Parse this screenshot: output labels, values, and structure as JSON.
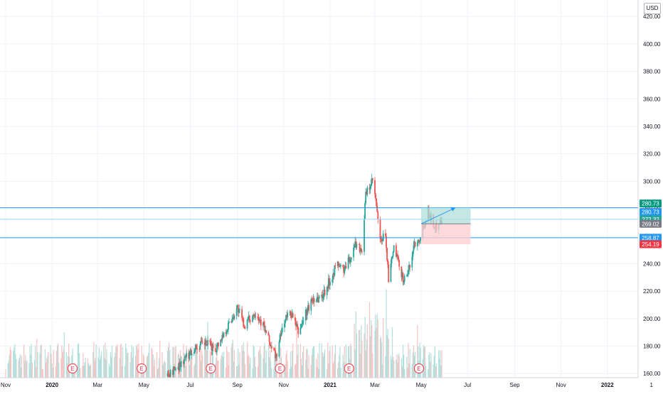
{
  "currency": "USD",
  "chart_data": {
    "type": "candlestick",
    "y_axis": {
      "ylim": [
        157,
        432
      ],
      "ticks": [
        160,
        180,
        200,
        220,
        240,
        260,
        280,
        300,
        320,
        340,
        360,
        380,
        400,
        420
      ],
      "tick_labels": [
        "160.00",
        "180.00",
        "200.00",
        "220.00",
        "240.00",
        "260.00",
        "280.00",
        "300.00",
        "320.00",
        "340.00",
        "360.00",
        "380.00",
        "400.00",
        "420.00"
      ]
    },
    "x_axis": {
      "labels": [
        {
          "text": "Nov",
          "date": "2019-11-01",
          "bold": false
        },
        {
          "text": "2020",
          "date": "2020-01-01",
          "bold": true
        },
        {
          "text": "Mar",
          "date": "2020-03-01",
          "bold": false
        },
        {
          "text": "May",
          "date": "2020-05-01",
          "bold": false
        },
        {
          "text": "Jul",
          "date": "2020-07-01",
          "bold": false
        },
        {
          "text": "Sep",
          "date": "2020-09-01",
          "bold": false
        },
        {
          "text": "Nov",
          "date": "2020-11-01",
          "bold": false
        },
        {
          "text": "2021",
          "date": "2021-01-01",
          "bold": true
        },
        {
          "text": "Mar",
          "date": "2021-03-01",
          "bold": false
        },
        {
          "text": "May",
          "date": "2021-05-01",
          "bold": false
        },
        {
          "text": "Jul",
          "date": "2021-07-01",
          "bold": false
        },
        {
          "text": "Sep",
          "date": "2021-09-01",
          "bold": false
        },
        {
          "text": "Nov",
          "date": "2021-11-01",
          "bold": false
        },
        {
          "text": "2022",
          "date": "2022-01-01",
          "bold": true
        },
        {
          "text": "1",
          "date": "2022-02-28",
          "bold": false
        }
      ]
    },
    "price_path": [
      [
        "2020-06-01",
        158
      ],
      [
        "2020-06-20",
        168
      ],
      [
        "2020-07-05",
        178
      ],
      [
        "2020-07-20",
        182
      ],
      [
        "2020-08-03",
        178
      ],
      [
        "2020-08-20",
        195
      ],
      [
        "2020-09-01",
        208
      ],
      [
        "2020-09-10",
        195
      ],
      [
        "2020-09-25",
        205
      ],
      [
        "2020-10-05",
        195
      ],
      [
        "2020-10-15",
        180
      ],
      [
        "2020-10-22",
        172
      ],
      [
        "2020-11-01",
        198
      ],
      [
        "2020-11-10",
        205
      ],
      [
        "2020-11-20",
        190
      ],
      [
        "2020-12-01",
        205
      ],
      [
        "2020-12-10",
        215
      ],
      [
        "2020-12-20",
        215
      ],
      [
        "2021-01-01",
        228
      ],
      [
        "2021-01-10",
        240
      ],
      [
        "2021-01-20",
        235
      ],
      [
        "2021-01-28",
        245
      ],
      [
        "2021-02-04",
        255
      ],
      [
        "2021-02-12",
        250
      ],
      [
        "2021-02-17",
        290
      ],
      [
        "2021-02-22",
        296
      ],
      [
        "2021-02-26",
        300
      ],
      [
        "2021-03-01",
        290
      ],
      [
        "2021-03-05",
        272
      ],
      [
        "2021-03-08",
        255
      ],
      [
        "2021-03-15",
        262
      ],
      [
        "2021-03-19",
        228
      ],
      [
        "2021-03-26",
        252
      ],
      [
        "2021-04-01",
        240
      ],
      [
        "2021-04-08",
        228
      ],
      [
        "2021-04-15",
        236
      ],
      [
        "2021-04-22",
        255
      ],
      [
        "2021-04-28",
        258
      ],
      [
        "2021-05-04",
        268
      ],
      [
        "2021-05-10",
        278
      ],
      [
        "2021-05-15",
        272
      ],
      [
        "2021-05-19",
        265
      ],
      [
        "2021-05-25",
        272
      ],
      [
        "2021-05-30",
        270
      ]
    ],
    "earnings_markers": [
      {
        "label": "E",
        "date": "2020-01-28"
      },
      {
        "label": "E",
        "date": "2020-04-28"
      },
      {
        "label": "E",
        "date": "2020-07-28"
      },
      {
        "label": "E",
        "date": "2020-10-27"
      },
      {
        "label": "E",
        "date": "2021-01-26"
      },
      {
        "label": "E",
        "date": "2021-04-28"
      }
    ],
    "horizontal_lines": [
      {
        "price": 280.73,
        "color": "#2196f3"
      },
      {
        "price": 272.32,
        "color": "#9ed3f5"
      },
      {
        "price": 258.87,
        "color": "#2196f3"
      }
    ],
    "position_tool": {
      "type": "long",
      "start_date": "2021-05-01",
      "end_date": "2021-07-05",
      "entry": 269.02,
      "target": 280.73,
      "stop": 254.19,
      "current": 272.32,
      "arrow_to_date": "2021-06-15",
      "profit_color": "#b2dfdb",
      "loss_color": "#ffcdd2"
    },
    "price_labels": [
      {
        "text": "280.73",
        "price": 280.73,
        "bg": "#089981",
        "fg": "#ffffff",
        "offset": -6
      },
      {
        "text": "280.73",
        "price": 280.73,
        "bg": "#2196f3",
        "fg": "#ffffff",
        "offset": 6
      },
      {
        "text": "272.32",
        "price": 272.32,
        "bg": "#26a69a",
        "fg": "#ffffff",
        "offset": 0
      },
      {
        "text": "269.02",
        "price": 269.02,
        "bg": "#787b86",
        "fg": "#ffffff",
        "offset": 0
      },
      {
        "text": "258.87",
        "price": 258.87,
        "bg": "#2196f3",
        "fg": "#ffffff",
        "offset": 0
      },
      {
        "text": "254.19",
        "price": 254.19,
        "bg": "#f23645",
        "fg": "#ffffff",
        "offset": 0
      }
    ],
    "colors": {
      "up": "#26a69a",
      "down": "#ef5350",
      "volume_up": "#b2dfdb",
      "volume_down": "#f7c3c3",
      "grid": "#f0f3fa",
      "axis_text": "#131722"
    },
    "grid": true
  }
}
